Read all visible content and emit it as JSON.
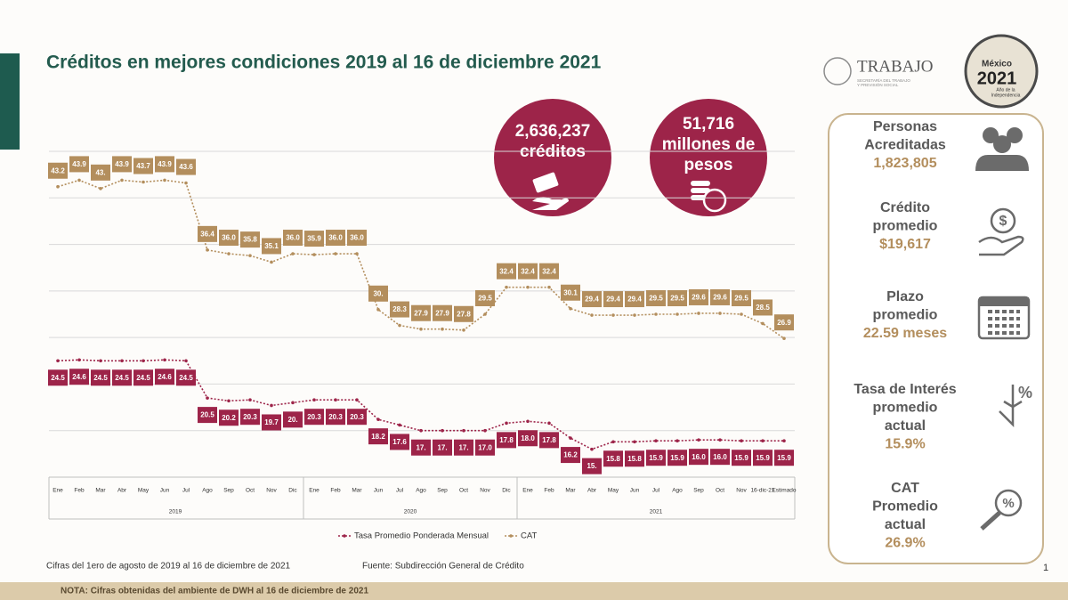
{
  "title": "Créditos en mejores condiciones 2019 al 16 de diciembre 2021",
  "logos": {
    "trabajo": "TRABAJO",
    "trabajo_sub": [
      "SECRETARÍA DEL TRABAJO",
      "Y PREVISIÓN SOCIAL"
    ],
    "mexico": "México",
    "year": "2021",
    "year_sub": [
      "Año de la",
      "Independencia"
    ]
  },
  "highlights": [
    {
      "lines": [
        "2,636,237",
        "créditos"
      ]
    },
    {
      "lines": [
        "51,716",
        "millones de",
        "pesos"
      ]
    }
  ],
  "indicators": [
    {
      "label": [
        "Personas",
        "Acreditadas"
      ],
      "value": "1,823,805"
    },
    {
      "label": [
        "Crédito",
        "promedio"
      ],
      "value": "$19,617"
    },
    {
      "label": [
        "Plazo",
        "promedio"
      ],
      "value": "22.59 meses"
    },
    {
      "label": [
        "Tasa de Interés",
        "promedio",
        "actual"
      ],
      "value": "15.9%"
    },
    {
      "label": [
        "CAT",
        "Promedio",
        "actual"
      ],
      "value": "26.9%"
    }
  ],
  "chart_data": {
    "type": "line",
    "groups": [
      {
        "label": "2019",
        "categories": [
          "Ene",
          "Feb",
          "Mar",
          "Abr",
          "May",
          "Jun",
          "Jul",
          "Ago",
          "Sep",
          "Oct",
          "Nov",
          "Dic"
        ]
      },
      {
        "label": "2020",
        "categories": [
          "Ene",
          "Feb",
          "Mar",
          "Jun",
          "Jul",
          "Ago",
          "Sep",
          "Oct",
          "Nov",
          "Dic"
        ]
      },
      {
        "label": "2021",
        "categories": [
          "Ene",
          "Feb",
          "Mar",
          "Abr",
          "May",
          "Jun",
          "Jul",
          "Ago",
          "Sep",
          "Oct",
          "Nov",
          "16-dic-21",
          "Estimado"
        ]
      }
    ],
    "series": [
      {
        "name": "Tasa Promedio Ponderada Mensual",
        "color": "#9d2449",
        "label_position": "below",
        "values": [
          24.5,
          24.6,
          24.5,
          24.5,
          24.5,
          24.6,
          24.5,
          20.5,
          20.2,
          20.3,
          19.7,
          20,
          20.3,
          20.3,
          20.3,
          18.2,
          17.6,
          17,
          17,
          17,
          17.0,
          17.8,
          18.0,
          17.8,
          16.2,
          15,
          15.8,
          15.8,
          15.9,
          15.9,
          16.0,
          16.0,
          15.9,
          15.9,
          15.9
        ],
        "value_labels": [
          "24.5",
          "24.6",
          "24.5",
          "24.5",
          "24.5",
          "24.6",
          "24.5",
          "20.5",
          "20.2",
          "20.3",
          "19.7",
          "20.",
          "20.3",
          "20.3",
          "20.3",
          "18.2",
          "17.6",
          "17.",
          "17.",
          "17.",
          "17.0",
          "17.8",
          "18.0",
          "17.8",
          "16.2",
          "15.",
          "15.8",
          "15.8",
          "15.9",
          "15.9",
          "16.0",
          "16.0",
          "15.9",
          "15.9",
          "15.9"
        ]
      },
      {
        "name": "CAT",
        "color": "#b38e5d",
        "label_position": "above",
        "values": [
          43.2,
          43.9,
          43,
          43.9,
          43.7,
          43.9,
          43.6,
          36.4,
          36.0,
          35.8,
          35.1,
          36.0,
          35.9,
          36.0,
          36.0,
          30,
          28.3,
          27.9,
          27.9,
          27.8,
          29.5,
          32.4,
          32.4,
          32.4,
          30.1,
          29.4,
          29.4,
          29.4,
          29.5,
          29.5,
          29.6,
          29.6,
          29.5,
          28.5,
          26.9
        ],
        "value_labels": [
          "43.2",
          "43.9",
          "43.",
          "43.9",
          "43.7",
          "43.9",
          "43.6",
          "36.4",
          "36.0",
          "35.8",
          "35.1",
          "36.0",
          "35.9",
          "36.0",
          "36.0",
          "30.",
          "28.3",
          "27.9",
          "27.9",
          "27.8",
          "29.5",
          "32.4",
          "32.4",
          "32.4",
          "30.1",
          "29.4",
          "29.4",
          "29.4",
          "29.5",
          "29.5",
          "29.6",
          "29.6",
          "29.5",
          "28.5",
          "26.9"
        ]
      }
    ],
    "ylim": [
      12,
      47
    ],
    "grid_lines": [
      17,
      22,
      27,
      32,
      37,
      42,
      47
    ],
    "grid": true,
    "legend": "bottom"
  },
  "footnote": "Cifras del 1ero de agosto de 2019 al 16 de diciembre de 2021",
  "source": "Fuente: Subdirección General de  Crédito",
  "note": "NOTA: Cifras obtenidas del ambiente de DWH al 16 de diciembre de 2021",
  "page_number": "1"
}
